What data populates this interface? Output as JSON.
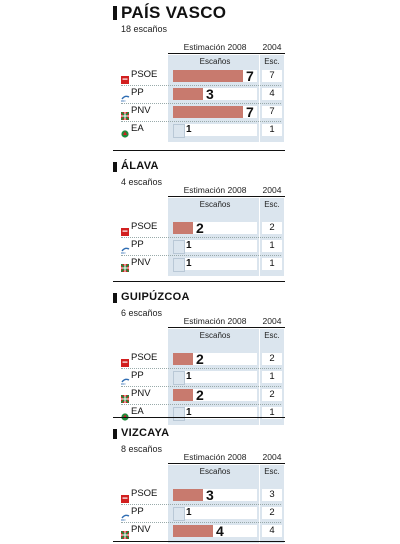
{
  "colors": {
    "bar_estimate": "#c87a6e",
    "bar_low": "#dbe5ee",
    "panel": "#dbe5ee"
  },
  "labels": {
    "estimacion": "Estimación 2008",
    "year2004": "2004",
    "escanos": "Escaños",
    "esc": "Esc."
  },
  "chart_data": [
    {
      "type": "bar",
      "title": "PAÍS VASCO",
      "subtitle": "18 escaños",
      "categories": [
        "PSOE",
        "PP",
        "PNV",
        "EA"
      ],
      "series": [
        {
          "name": "Estimación 2008",
          "values": [
            7,
            3,
            7,
            1
          ]
        },
        {
          "name": "2004",
          "values": [
            7,
            4,
            7,
            1
          ]
        }
      ],
      "xlim": [
        0,
        8
      ]
    },
    {
      "type": "bar",
      "title": "ÁLAVA",
      "subtitle": "4 escaños",
      "categories": [
        "PSOE",
        "PP",
        "PNV"
      ],
      "series": [
        {
          "name": "Estimación 2008",
          "values": [
            2,
            1,
            1
          ]
        },
        {
          "name": "2004",
          "values": [
            2,
            1,
            1
          ]
        }
      ],
      "xlim": [
        0,
        8
      ]
    },
    {
      "type": "bar",
      "title": "GUIPÚZCOA",
      "subtitle": "6 escaños",
      "categories": [
        "PSOE",
        "PP",
        "PNV",
        "EA"
      ],
      "series": [
        {
          "name": "Estimación 2008",
          "values": [
            2,
            1,
            2,
            1
          ]
        },
        {
          "name": "2004",
          "values": [
            2,
            1,
            2,
            1
          ]
        }
      ],
      "xlim": [
        0,
        8
      ]
    },
    {
      "type": "bar",
      "title": "VIZCAYA",
      "subtitle": "8 escaños",
      "categories": [
        "PSOE",
        "PP",
        "PNV"
      ],
      "series": [
        {
          "name": "Estimación 2008",
          "values": [
            3,
            1,
            4
          ]
        },
        {
          "name": "2004",
          "values": [
            3,
            2,
            4
          ]
        }
      ],
      "xlim": [
        0,
        8
      ]
    }
  ]
}
